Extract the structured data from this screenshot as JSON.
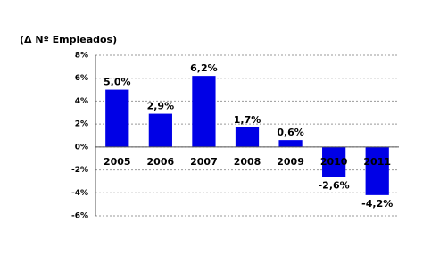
{
  "chart_data": {
    "type": "bar",
    "title": "(Δ Nº Empleados)",
    "categories": [
      "2005",
      "2006",
      "2007",
      "2008",
      "2009",
      "2010",
      "2011"
    ],
    "values": [
      5.0,
      2.9,
      6.2,
      1.7,
      0.6,
      -2.6,
      -4.2
    ],
    "value_labels": [
      "5,0%",
      "2,9%",
      "6,2%",
      "1,7%",
      "0,6%",
      "-2,6%",
      "-4,2%"
    ],
    "color": "#0000e6",
    "ylim": [
      -6,
      8
    ],
    "yticks": [
      {
        "value": -6,
        "label": "-6%"
      },
      {
        "value": -4,
        "label": "-4%"
      },
      {
        "value": -2,
        "label": "-2%"
      },
      {
        "value": 0,
        "label": "0%"
      },
      {
        "value": 2,
        "label": "2%"
      },
      {
        "value": 4,
        "label": "4%"
      },
      {
        "value": 6,
        "label": "6%"
      },
      {
        "value": 8,
        "label": "8%"
      }
    ],
    "grid": true
  }
}
